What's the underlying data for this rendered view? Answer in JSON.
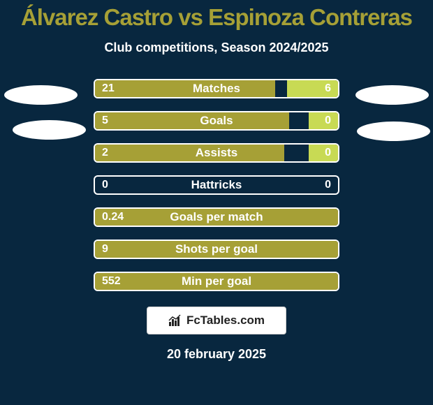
{
  "bg_color": "#08273f",
  "title_color": "#a6a036",
  "player_left": "Álvarez Castro",
  "player_right": "Espinoza Contreras",
  "vs_text": "vs",
  "subtitle": "Club competitions, Season 2024/2025",
  "left_color": "#a6a036",
  "right_color": "#c8da54",
  "bar_track_color": "#08273f",
  "bars": [
    {
      "label": "Matches",
      "left_val": "21",
      "right_val": "6",
      "left_pct": 74,
      "right_pct": 21
    },
    {
      "label": "Goals",
      "left_val": "5",
      "right_val": "0",
      "left_pct": 80,
      "right_pct": 12
    },
    {
      "label": "Assists",
      "left_val": "2",
      "right_val": "0",
      "left_pct": 78,
      "right_pct": 12
    },
    {
      "label": "Hattricks",
      "left_val": "0",
      "right_val": "0",
      "left_pct": 0,
      "right_pct": 0
    },
    {
      "label": "Goals per match",
      "left_val": "0.24",
      "right_val": "",
      "left_pct": 100,
      "right_pct": 0
    },
    {
      "label": "Shots per goal",
      "left_val": "9",
      "right_val": "",
      "left_pct": 100,
      "right_pct": 0
    },
    {
      "label": "Min per goal",
      "left_val": "552",
      "right_val": "",
      "left_pct": 100,
      "right_pct": 0
    }
  ],
  "brand_text": "FcTables.com",
  "date_text": "20 february 2025",
  "text_fontsize": 17,
  "title_fontsize": 33,
  "subtitle_fontsize": 18
}
